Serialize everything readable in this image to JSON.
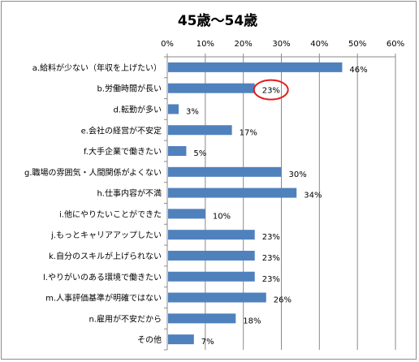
{
  "chart_data": {
    "type": "bar",
    "orientation": "horizontal",
    "title": "45歳～54歳",
    "xlabel": "",
    "ylabel": "",
    "xlim": [
      0,
      60
    ],
    "x_ticks": [
      "0%",
      "10%",
      "20%",
      "30%",
      "40%",
      "50%",
      "60%"
    ],
    "grid": true,
    "legend": "none",
    "bar_color": "#4f81bd",
    "highlight_color": "#e31c1c",
    "highlighted_category": "b.労働時間が長い",
    "categories": [
      "a.給料が少ない（年収を上げたい）",
      "b.労働時間が長い",
      "d.転勤が多い",
      "e.会社の経営が不安定",
      "f.大手企業で働きたい",
      "g.職場の雰囲気・人間関係がよくない",
      "h.仕事内容が不満",
      "i.他にやりたいことができた",
      "j.もっとキャリアアップしたい",
      "k.自分のスキルが上げられない",
      "l.やりがいのある環境で働きたい",
      "m.人事評価基準が明確ではない",
      "n.雇用が不安だから",
      "その他"
    ],
    "values": [
      46,
      23,
      3,
      17,
      5,
      30,
      34,
      10,
      23,
      23,
      23,
      26,
      18,
      7
    ],
    "value_labels": [
      "46%",
      "23%",
      "3%",
      "17%",
      "5%",
      "30%",
      "34%",
      "10%",
      "23%",
      "23%",
      "23%",
      "26%",
      "18%",
      "7%"
    ]
  }
}
